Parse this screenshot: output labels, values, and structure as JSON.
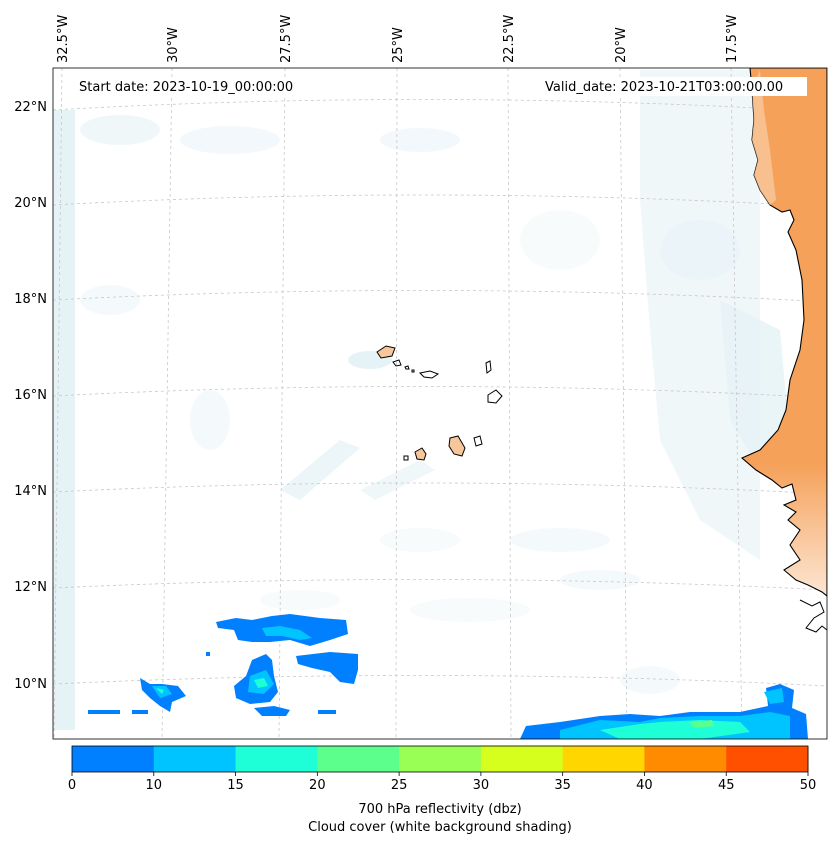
{
  "map": {
    "lon_labels": [
      "32.5°W",
      "30°W",
      "27.5°W",
      "25°W",
      "22.5°W",
      "20°W",
      "17.5°W"
    ],
    "lat_labels": [
      "22°N",
      "20°N",
      "18°N",
      "16°N",
      "14°N",
      "12°N",
      "10°N"
    ],
    "start_date": "Start date: 2023-10-19_00:00:00",
    "valid_date": "Valid_date: 2023-10-21T03:00:00.00"
  },
  "colorbar": {
    "ticks": [
      "0",
      "10",
      "15",
      "20",
      "25",
      "30",
      "35",
      "40",
      "45",
      "50"
    ],
    "colors": [
      "#0080ff",
      "#00c4ff",
      "#1effd8",
      "#5cff8c",
      "#9aff54",
      "#d6ff1e",
      "#ffd600",
      "#ff8c00",
      "#ff5000"
    ],
    "label_line1": "700 hPa reflectivity (dbz)",
    "label_line2": "Cloud cover (white background shading)"
  },
  "colors": {
    "land": "#f5a15a",
    "land_light": "#f8c69b",
    "cloud": "#cfe8ef",
    "reflectivity_low": "#0080ff",
    "reflectivity_mid": "#00c4ff",
    "reflectivity_high": "#1effd8"
  }
}
